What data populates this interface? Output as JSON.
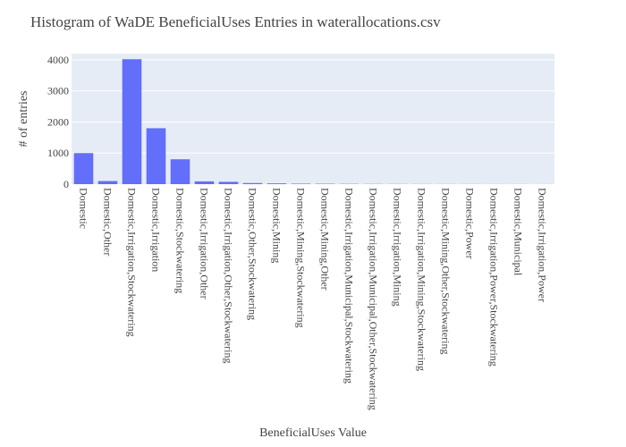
{
  "chart_data": {
    "type": "bar",
    "title": "Histogram of WaDE BeneficialUses Entries in waterallocations.csv",
    "xlabel": "BeneficialUses Value",
    "ylabel": "# of entries",
    "ylim": [
      0,
      4200
    ],
    "yticks": [
      0,
      1000,
      2000,
      3000,
      4000
    ],
    "grid": true,
    "legend": "none",
    "categories": [
      "Domestic",
      "Domestic,Other",
      "Domestic,Irrigation,Stockwatering",
      "Domestic,Irrigation",
      "Domestic,Stockwatering",
      "Domestic,Irrigation,Other",
      "Domestic,Irrigation,Other,Stockwatering",
      "Domestic,Other,Stockwatering",
      "Domestic,Mining",
      "Domestic,Mining,Stockwatering",
      "Domestic,Mining,Other",
      "Domestic,Irrigation,Municipal,Stockwatering",
      "Domestic,Irrigation,Municipal,Other,Stockwatering",
      "Domestic,Irrigation,Mining",
      "Domestic,Irrigation,Mining,Stockwatering",
      "Domestic,Mining,Other,Stockwatering",
      "Domestic,Power",
      "Domestic,Irrigation,Power,Stockwatering",
      "Domestic,Municipal",
      "Domestic,Irrigation,Power"
    ],
    "values": [
      1000,
      100,
      4020,
      1800,
      800,
      90,
      75,
      35,
      25,
      15,
      12,
      8,
      6,
      5,
      4,
      3,
      3,
      2,
      2,
      1
    ],
    "colors": {
      "bar": "#636efa",
      "plot_bg": "#e5ecf6",
      "grid": "#ffffff",
      "text": "#444444"
    }
  }
}
